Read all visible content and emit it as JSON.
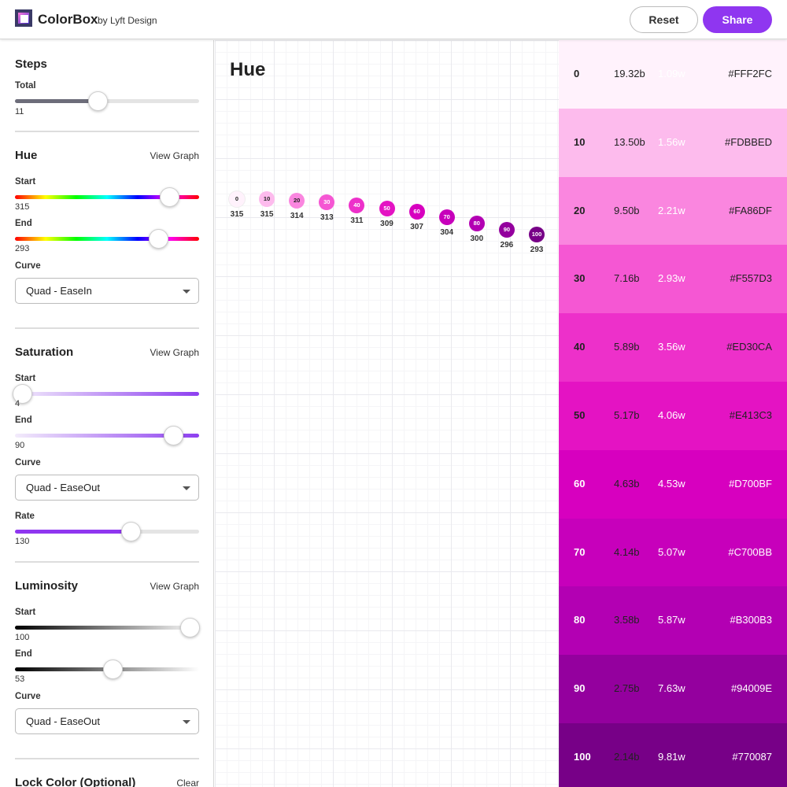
{
  "header": {
    "title": "ColorBox",
    "subtitle": "by Lyft Design",
    "reset_label": "Reset",
    "share_label": "Share"
  },
  "sidebar": {
    "steps": {
      "title": "Steps",
      "total_label": "Total",
      "total_value": "11",
      "total_fraction": 0.45
    },
    "hue": {
      "title": "Hue",
      "view_graph": "View Graph",
      "start_label": "Start",
      "start_value": "315",
      "start_fraction": 0.84,
      "end_label": "End",
      "end_value": "293",
      "end_fraction": 0.78,
      "curve_label": "Curve",
      "curve_value": "Quad - EaseIn"
    },
    "saturation": {
      "title": "Saturation",
      "view_graph": "View Graph",
      "start_label": "Start",
      "start_value": "4",
      "start_fraction": 0.04,
      "end_label": "End",
      "end_value": "90",
      "end_fraction": 0.86,
      "curve_label": "Curve",
      "curve_value": "Quad - EaseOut",
      "rate_label": "Rate",
      "rate_value": "130",
      "rate_fraction": 0.63
    },
    "luminosity": {
      "title": "Luminosity",
      "view_graph": "View Graph",
      "start_label": "Start",
      "start_value": "100",
      "start_fraction": 0.95,
      "end_label": "End",
      "end_value": "53",
      "end_fraction": 0.53,
      "curve_label": "Curve",
      "curve_value": "Quad - EaseOut"
    },
    "lock": {
      "title": "Lock Color (Optional)",
      "clear_label": "Clear"
    }
  },
  "graph": {
    "title": "Hue",
    "chart_data": {
      "type": "scatter",
      "title": "Hue",
      "point_labels": [
        "0",
        "10",
        "20",
        "30",
        "40",
        "50",
        "60",
        "70",
        "80",
        "90",
        "100"
      ],
      "values": [
        315,
        315,
        314,
        313,
        311,
        309,
        307,
        304,
        300,
        296,
        293
      ]
    }
  },
  "swatches": [
    {
      "step": "0",
      "b": "19.32b",
      "w": "1.09w",
      "hex": "#FFF2FC",
      "color": "#FFF2FC",
      "text": "#222222",
      "w_color": "#ffffff"
    },
    {
      "step": "10",
      "b": "13.50b",
      "w": "1.56w",
      "hex": "#FDBBED",
      "color": "#FDBBED",
      "text": "#222222",
      "w_color": "#ffffff"
    },
    {
      "step": "20",
      "b": "9.50b",
      "w": "2.21w",
      "hex": "#FA86DF",
      "color": "#FA86DF",
      "text": "#222222",
      "w_color": "#ffffff"
    },
    {
      "step": "30",
      "b": "7.16b",
      "w": "2.93w",
      "hex": "#F557D3",
      "color": "#F557D3",
      "text": "#222222",
      "w_color": "#ffffff"
    },
    {
      "step": "40",
      "b": "5.89b",
      "w": "3.56w",
      "hex": "#ED30CA",
      "color": "#ED30CA",
      "text": "#222222",
      "w_color": "#ffffff"
    },
    {
      "step": "50",
      "b": "5.17b",
      "w": "4.06w",
      "hex": "#E413C3",
      "color": "#E413C3",
      "text": "#222222",
      "w_color": "#ffffff"
    },
    {
      "step": "60",
      "b": "4.63b",
      "w": "4.53w",
      "hex": "#D700BF",
      "color": "#D700BF",
      "text": "#ffffff",
      "b_color": "#222222"
    },
    {
      "step": "70",
      "b": "4.14b",
      "w": "5.07w",
      "hex": "#C700BB",
      "color": "#C700BB",
      "text": "#ffffff",
      "b_color": "#222222"
    },
    {
      "step": "80",
      "b": "3.58b",
      "w": "5.87w",
      "hex": "#B300B3",
      "color": "#B300B3",
      "text": "#ffffff",
      "b_color": "#222222"
    },
    {
      "step": "90",
      "b": "2.75b",
      "w": "7.63w",
      "hex": "#94009E",
      "color": "#94009E",
      "text": "#ffffff",
      "b_color": "#222222"
    },
    {
      "step": "100",
      "b": "2.14b",
      "w": "9.81w",
      "hex": "#770087",
      "color": "#770087",
      "text": "#ffffff",
      "b_color": "#222222"
    }
  ],
  "colors": {
    "accent": "#8f36f0",
    "hue_gradient": "#ff0000,#ffff00,#00ff00,#00ffff,#0000ff,#ff00ff,#ff0000"
  }
}
